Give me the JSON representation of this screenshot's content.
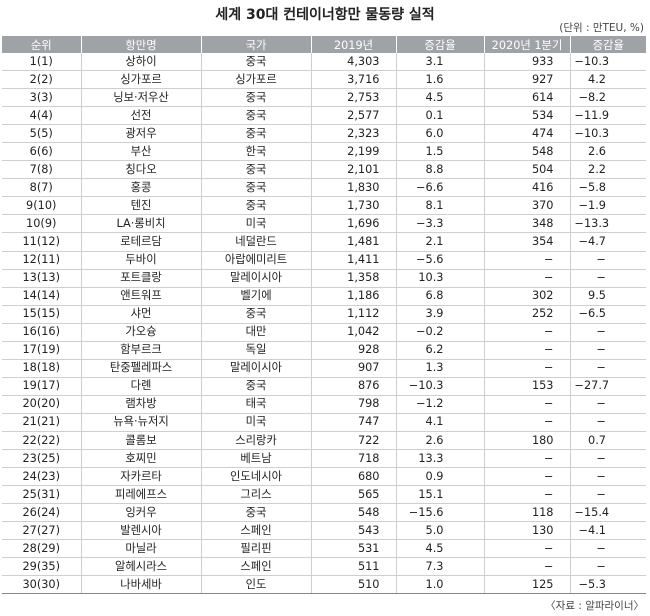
{
  "title": "세계 30대 컨테이너항만 물동량 실적",
  "unit": "(단위 : 만TEU, %)",
  "source": "〈자료 : 알파라이너〉",
  "columns": [
    "순위",
    "항만명",
    "국가",
    "2019년",
    "증감율",
    "2020년 1분기",
    "증감율"
  ],
  "rows": [
    [
      "1(1)",
      "상하이",
      "중국",
      "4,303",
      "3.1",
      "933",
      "−10.3"
    ],
    [
      "2(2)",
      "싱가포르",
      "싱가포르",
      "3,716",
      "1.6",
      "927",
      "4.2"
    ],
    [
      "3(3)",
      "닝보·저우산",
      "중국",
      "2,753",
      "4.5",
      "614",
      "−8.2"
    ],
    [
      "4(4)",
      "선전",
      "중국",
      "2,577",
      "0.1",
      "534",
      "−11.9"
    ],
    [
      "5(5)",
      "광저우",
      "중국",
      "2,323",
      "6.0",
      "474",
      "−10.3"
    ],
    [
      "6(6)",
      "부산",
      "한국",
      "2,199",
      "1.5",
      "548",
      "2.6"
    ],
    [
      "7(8)",
      "칭다오",
      "중국",
      "2,101",
      "8.8",
      "504",
      "2.2"
    ],
    [
      "8(7)",
      "홍콩",
      "중국",
      "1,830",
      "−6.6",
      "416",
      "−5.8"
    ],
    [
      "9(10)",
      "텐진",
      "중국",
      "1,730",
      "8.1",
      "370",
      "−1.9"
    ],
    [
      "10(9)",
      "LA·롱비치",
      "미국",
      "1,696",
      "−3.3",
      "348",
      "−13.3"
    ],
    [
      "11(12)",
      "로테르담",
      "네덜란드",
      "1,481",
      "2.1",
      "354",
      "−4.7"
    ],
    [
      "12(11)",
      "두바이",
      "아랍에미리트",
      "1,411",
      "−5.6",
      "−",
      "−"
    ],
    [
      "13(13)",
      "포트클랑",
      "말레이시아",
      "1,358",
      "10.3",
      "−",
      "−"
    ],
    [
      "14(14)",
      "앤트워프",
      "벨기에",
      "1,186",
      "6.8",
      "302",
      "9.5"
    ],
    [
      "15(15)",
      "샤먼",
      "중국",
      "1,112",
      "3.9",
      "252",
      "−6.5"
    ],
    [
      "16(16)",
      "가오슝",
      "대만",
      "1,042",
      "−0.2",
      "−",
      "−"
    ],
    [
      "17(19)",
      "함부르크",
      "독일",
      "928",
      "6.2",
      "−",
      "−"
    ],
    [
      "18(18)",
      "탄중펠레파스",
      "말레이시아",
      "907",
      "1.3",
      "−",
      "−"
    ],
    [
      "19(17)",
      "다롄",
      "중국",
      "876",
      "−10.3",
      "153",
      "−27.7"
    ],
    [
      "20(20)",
      "램차방",
      "태국",
      "798",
      "−1.2",
      "−",
      "−"
    ],
    [
      "21(21)",
      "뉴욕·뉴저지",
      "미국",
      "747",
      "4.1",
      "−",
      "−"
    ],
    [
      "22(22)",
      "콜롬보",
      "스리랑카",
      "722",
      "2.6",
      "180",
      "0.7"
    ],
    [
      "23(25)",
      "호찌민",
      "베트남",
      "718",
      "13.3",
      "−",
      "−"
    ],
    [
      "24(23)",
      "자카르타",
      "인도네시아",
      "680",
      "0.9",
      "−",
      "−"
    ],
    [
      "25(31)",
      "피레에프스",
      "그리스",
      "565",
      "15.1",
      "−",
      "−"
    ],
    [
      "26(24)",
      "잉커우",
      "중국",
      "548",
      "−15.6",
      "118",
      "−15.4"
    ],
    [
      "27(27)",
      "발렌시아",
      "스페인",
      "543",
      "5.0",
      "130",
      "−4.1"
    ],
    [
      "28(29)",
      "마닐라",
      "필리핀",
      "531",
      "4.5",
      "−",
      "−"
    ],
    [
      "29(35)",
      "알헤시라스",
      "스페인",
      "511",
      "7.3",
      "−",
      "−"
    ],
    [
      "30(30)",
      "나바세바",
      "인도",
      "510",
      "1.0",
      "125",
      "−5.3"
    ]
  ]
}
